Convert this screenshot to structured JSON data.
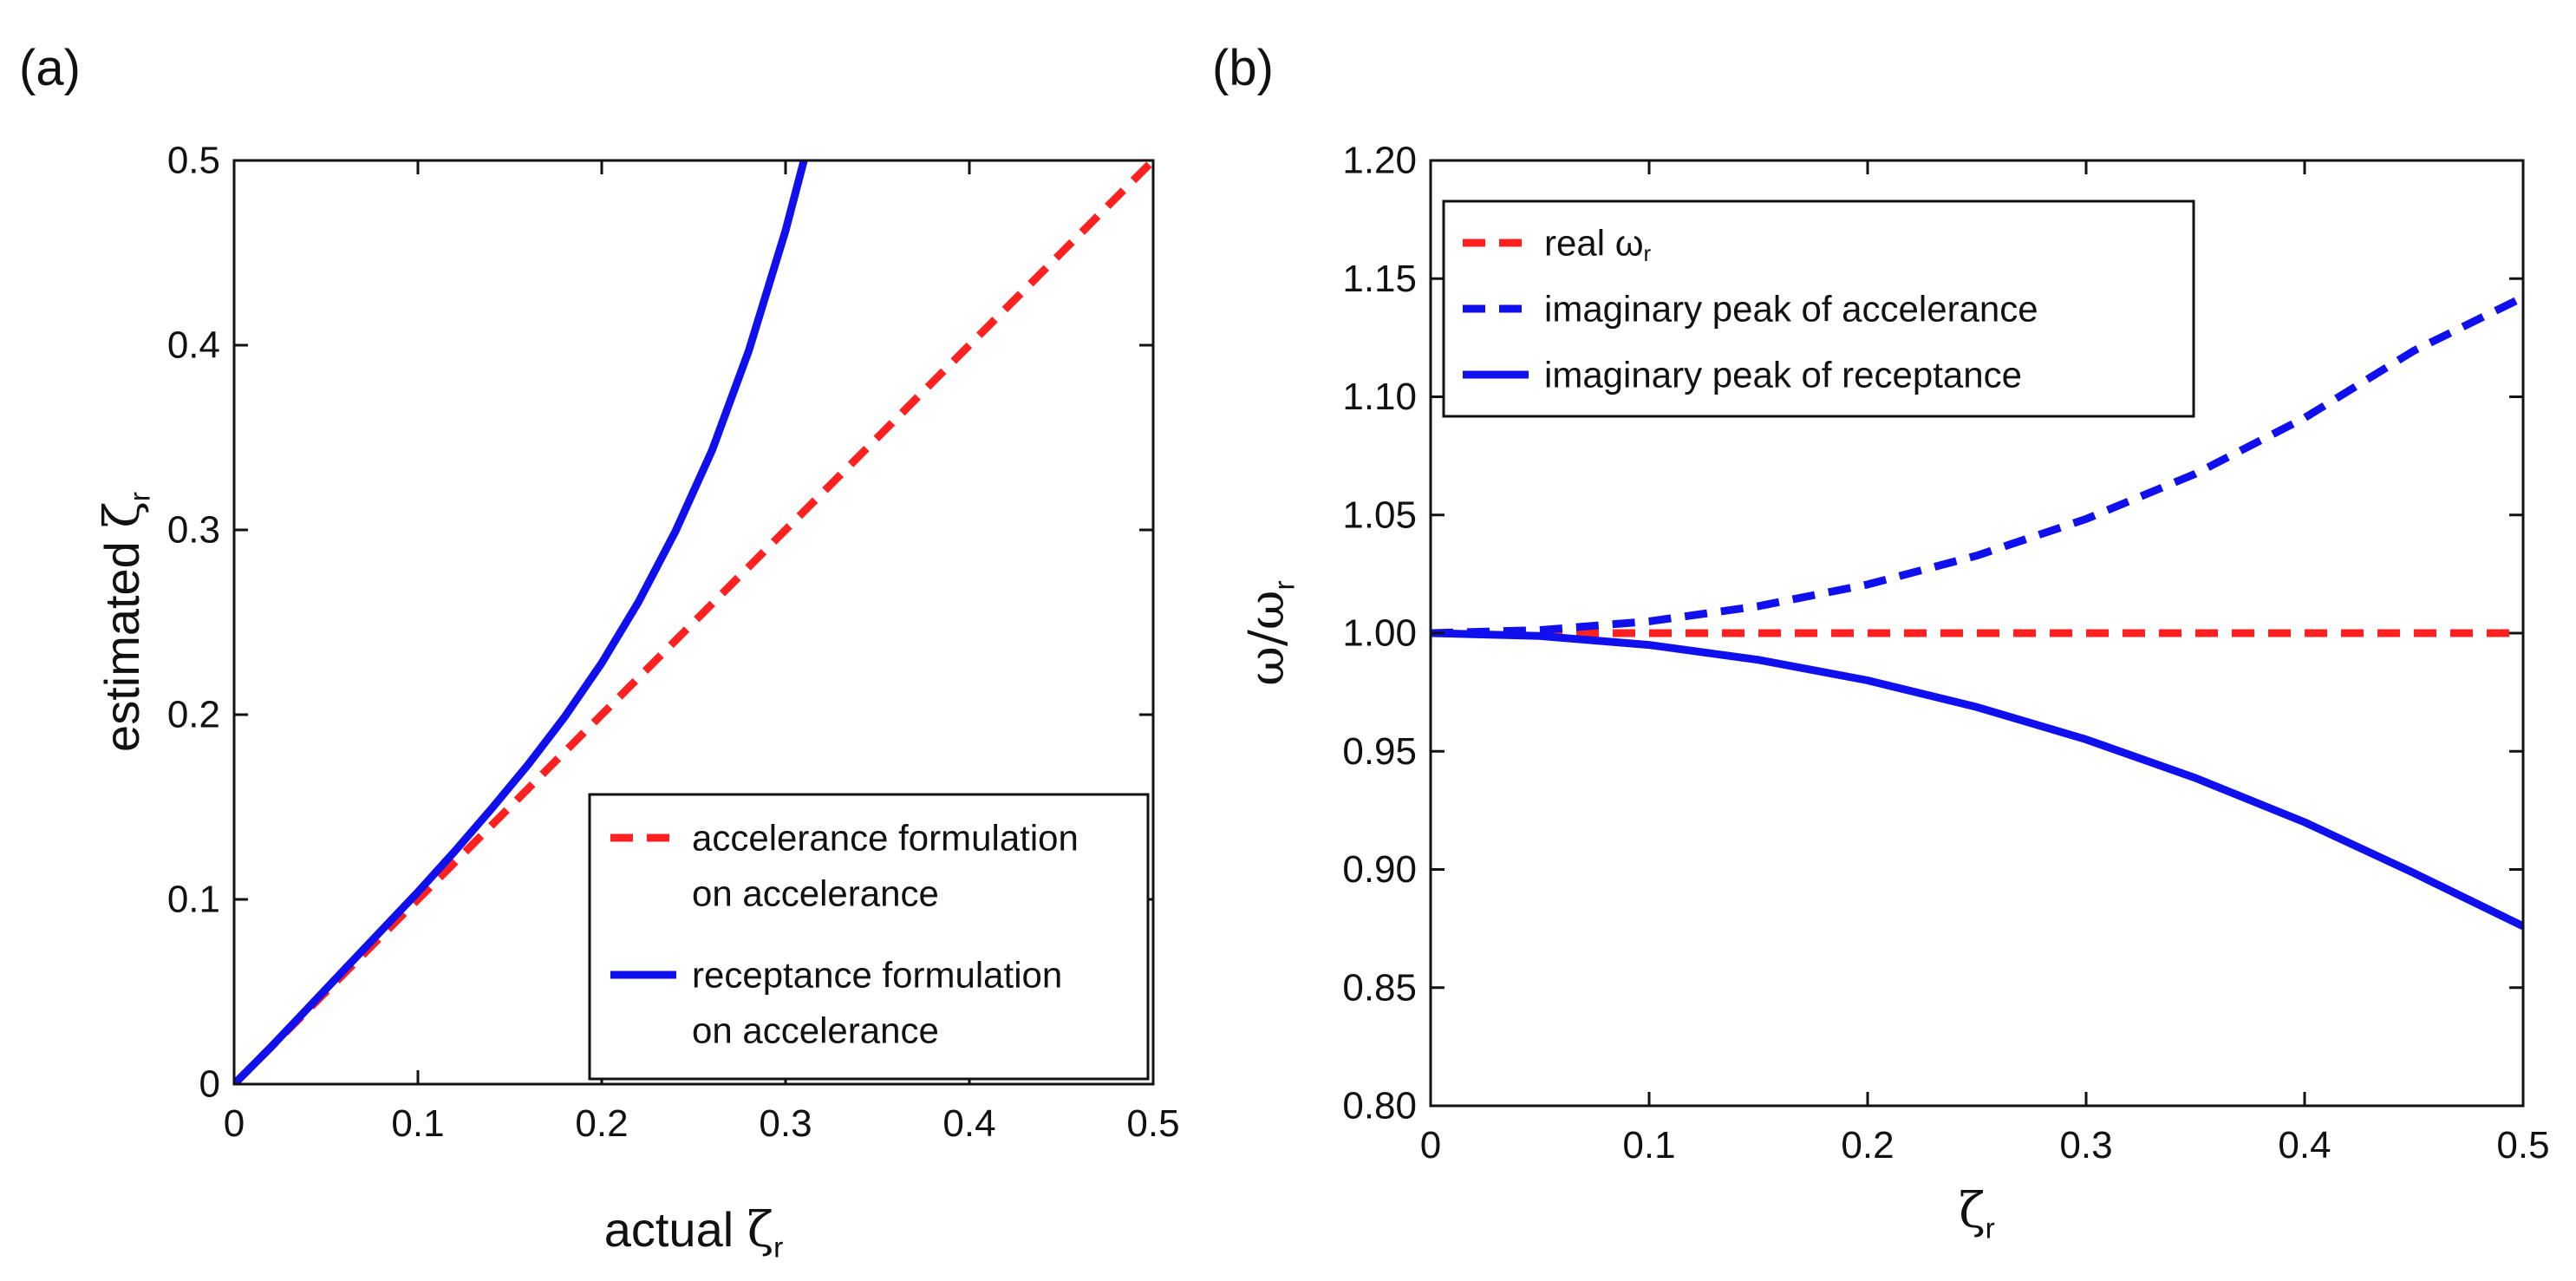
{
  "chart_data": [
    {
      "type": "line",
      "panel_label": "(a)",
      "xlabel": {
        "prefix": "actual ",
        "symbol": "ζ",
        "sub": "r"
      },
      "ylabel": {
        "prefix": "estimated ",
        "symbol": "ζ",
        "sub": "r"
      },
      "xlim": [
        0,
        0.5
      ],
      "ylim": [
        0,
        0.5
      ],
      "xticks": [
        0,
        0.1,
        0.2,
        0.3,
        0.4,
        0.5
      ],
      "xtick_labels": [
        "0",
        "0.1",
        "0.2",
        "0.3",
        "0.4",
        "0.5"
      ],
      "yticks": [
        0,
        0.1,
        0.2,
        0.3,
        0.4,
        0.5
      ],
      "ytick_labels": [
        "0",
        "0.1",
        "0.2",
        "0.3",
        "0.4",
        "0.5"
      ],
      "grid": false,
      "legend_position": "bottom-right",
      "series": [
        {
          "name": "accelerance formulation on accelerance",
          "legend_lines": [
            "accelerance formulation",
            "on accelerance"
          ],
          "color": "#ff2020",
          "dash": true,
          "x": [
            0,
            0.05,
            0.1,
            0.15,
            0.2,
            0.25,
            0.3,
            0.35,
            0.4,
            0.45,
            0.5
          ],
          "y": [
            0,
            0.05,
            0.1,
            0.15,
            0.2,
            0.25,
            0.3,
            0.35,
            0.4,
            0.45,
            0.5
          ]
        },
        {
          "name": "receptance formulation on accelerance",
          "legend_lines": [
            "receptance formulation",
            "on accelerance"
          ],
          "color": "#1010ee",
          "dash": false,
          "x": [
            0,
            0.02,
            0.04,
            0.06,
            0.08,
            0.1,
            0.12,
            0.14,
            0.16,
            0.18,
            0.2,
            0.22,
            0.24,
            0.26,
            0.28,
            0.3,
            0.31
          ],
          "y": [
            0,
            0.02,
            0.041,
            0.062,
            0.083,
            0.104,
            0.126,
            0.149,
            0.173,
            0.199,
            0.228,
            0.261,
            0.299,
            0.343,
            0.397,
            0.462,
            0.5
          ]
        }
      ]
    },
    {
      "type": "line",
      "panel_label": "(b)",
      "xlabel": {
        "prefix": "",
        "symbol": "ζ",
        "sub": "r"
      },
      "ylabel": {
        "prefix": "",
        "symbol": "ω/ω",
        "sub": "r"
      },
      "xlim": [
        0,
        0.5
      ],
      "ylim": [
        0.8,
        1.2
      ],
      "xticks": [
        0,
        0.1,
        0.2,
        0.3,
        0.4,
        0.5
      ],
      "xtick_labels": [
        "0",
        "0.1",
        "0.2",
        "0.3",
        "0.4",
        "0.5"
      ],
      "yticks": [
        0.8,
        0.85,
        0.9,
        0.95,
        1.0,
        1.05,
        1.1,
        1.15,
        1.2
      ],
      "ytick_labels": [
        "0.80",
        "0.85",
        "0.90",
        "0.95",
        "1.00",
        "1.05",
        "1.10",
        "1.15",
        "1.20"
      ],
      "grid": false,
      "legend_position": "top-left",
      "series": [
        {
          "name": "real ωr",
          "legend_text": "real  ω",
          "legend_sub": "r",
          "color": "#ff2020",
          "dash": true,
          "x": [
            0,
            0.1,
            0.2,
            0.3,
            0.4,
            0.5
          ],
          "y": [
            1.0,
            1.0,
            1.0,
            1.0,
            1.0,
            1.0
          ]
        },
        {
          "name": "imaginary peak of accelerance",
          "legend_text": "imaginary peak of accelerance",
          "legend_sub": "",
          "color": "#1010ee",
          "dash": true,
          "x": [
            0,
            0.05,
            0.1,
            0.15,
            0.2,
            0.25,
            0.3,
            0.35,
            0.4,
            0.45,
            0.5
          ],
          "y": [
            1.0,
            1.0013,
            1.005,
            1.0114,
            1.0206,
            1.0328,
            1.0483,
            1.0674,
            1.0911,
            1.1195,
            1.1421
          ]
        },
        {
          "name": "imaginary peak of receptance",
          "legend_text": "imaginary peak of receptance",
          "legend_sub": "",
          "color": "#1010ee",
          "dash": false,
          "x": [
            0,
            0.05,
            0.1,
            0.15,
            0.2,
            0.25,
            0.3,
            0.35,
            0.4,
            0.45,
            0.5
          ],
          "y": [
            1.0,
            0.9988,
            0.995,
            0.9887,
            0.98,
            0.9687,
            0.955,
            0.9387,
            0.92,
            0.8985,
            0.876
          ]
        }
      ]
    }
  ]
}
